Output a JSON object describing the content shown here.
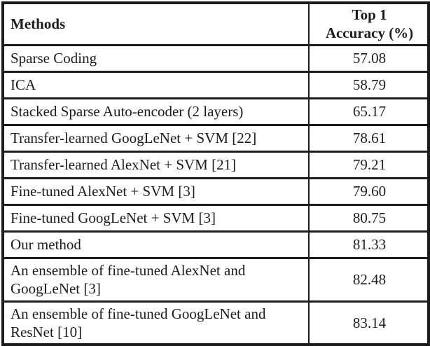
{
  "colors": {
    "border": "#1c1c1c",
    "text": "#1c1c1c",
    "background": "#ffffff"
  },
  "table": {
    "header": {
      "methods": "Methods",
      "accuracy_line1": "Top 1",
      "accuracy_line2": "Accuracy (%)"
    },
    "rows": [
      {
        "method": "Sparse Coding",
        "accuracy": "57.08"
      },
      {
        "method": "ICA",
        "accuracy": "58.79"
      },
      {
        "method": "Stacked Sparse Auto-encoder (2 layers)",
        "accuracy": "65.17"
      },
      {
        "method": "Transfer-learned GoogLeNet + SVM [22]",
        "accuracy": "78.61"
      },
      {
        "method": "Transfer-learned AlexNet + SVM [21]",
        "accuracy": "79.21"
      },
      {
        "method": "Fine-tuned AlexNet + SVM [3]",
        "accuracy": "79.60"
      },
      {
        "method": "Fine-tuned GoogLeNet + SVM [3]",
        "accuracy": "80.75"
      },
      {
        "method": "Our method",
        "accuracy": "81.33"
      },
      {
        "method": "An ensemble of fine-tuned AlexNet and GoogLeNet [3]",
        "accuracy": "82.48"
      },
      {
        "method": "An ensemble of fine-tuned GoogLeNet and ResNet [10]",
        "accuracy": "83.14"
      }
    ]
  },
  "chart_data": {
    "type": "table",
    "title": "Top 1 Accuracy (%) by Method",
    "categories": [
      "Sparse Coding",
      "ICA",
      "Stacked Sparse Auto-encoder (2 layers)",
      "Transfer-learned GoogLeNet + SVM [22]",
      "Transfer-learned AlexNet + SVM [21]",
      "Fine-tuned AlexNet + SVM [3]",
      "Fine-tuned GoogLeNet + SVM [3]",
      "Our method",
      "An ensemble of fine-tuned AlexNet and GoogLeNet [3]",
      "An ensemble of fine-tuned GoogLeNet and ResNet [10]"
    ],
    "values": [
      57.08,
      58.79,
      65.17,
      78.61,
      79.21,
      79.6,
      80.75,
      81.33,
      82.48,
      83.14
    ]
  }
}
